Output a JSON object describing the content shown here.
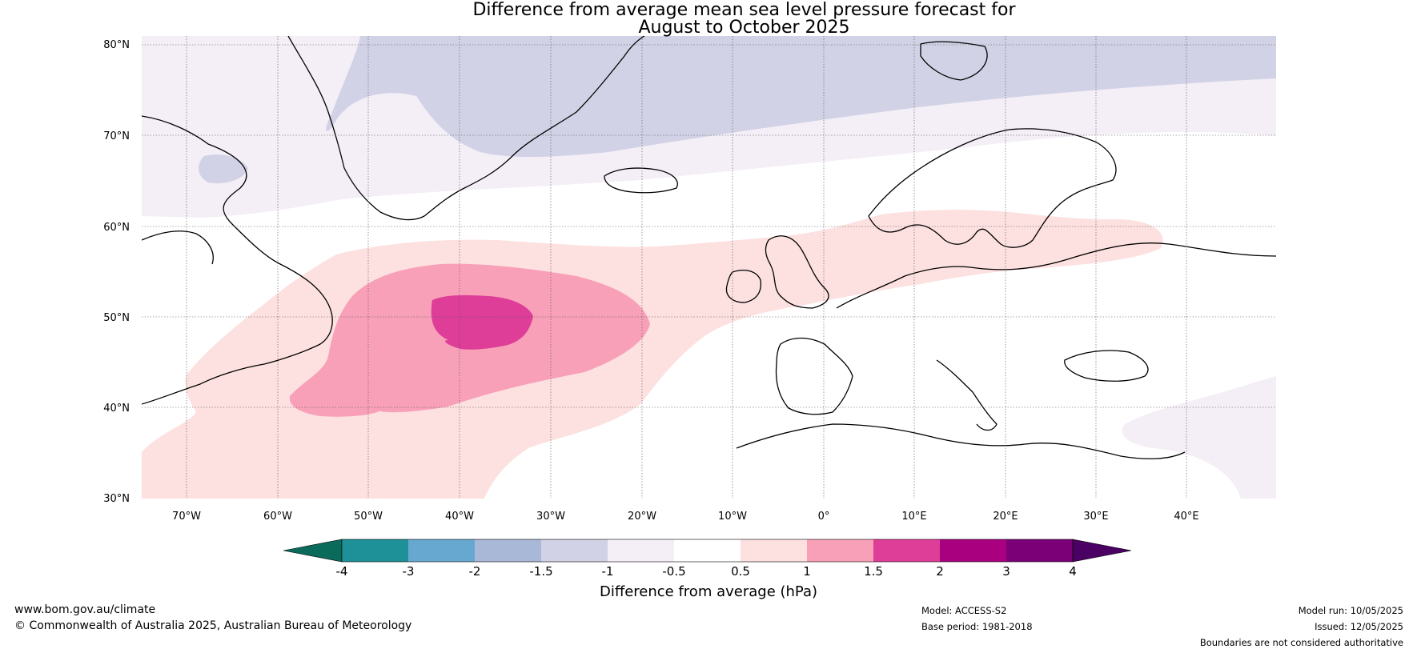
{
  "title": {
    "line1": "Difference from average mean sea level pressure forecast for",
    "line2": "August to October 2025"
  },
  "map": {
    "lat_labels": [
      "80°N",
      "70°N",
      "60°N",
      "50°N",
      "40°N",
      "30°N"
    ],
    "lon_labels": [
      "70°W",
      "60°W",
      "50°W",
      "40°W",
      "30°W",
      "20°W",
      "10°W",
      "0°",
      "10°E",
      "20°E",
      "30°E",
      "40°E"
    ]
  },
  "colorbar": {
    "title": "Difference from average (hPa)",
    "ticks": [
      "-4",
      "-3",
      "-2",
      "-1.5",
      "-1",
      "-0.5",
      "0.5",
      "1",
      "1.5",
      "2",
      "3",
      "4"
    ],
    "colors": [
      "#0b6b5a",
      "#1e9198",
      "#67a8d0",
      "#a9b8d6",
      "#d2d2e6",
      "#f4eef6",
      "#ffffff",
      "#fde0e0",
      "#f8a0b8",
      "#de3d98",
      "#a8007e",
      "#7b0078",
      "#4b0064"
    ]
  },
  "footer": {
    "left_line1": "www.bom.gov.au/climate",
    "left_line2": "© Commonwealth of Australia 2025, Australian Bureau of Meteorology",
    "model": "Model: ACCESS-S2",
    "base_period": "Base period: 1981-2018",
    "model_run": "Model run: 10/05/2025",
    "issued": "Issued: 12/05/2025",
    "disclaimer": "Boundaries are not considered authoritative"
  }
}
